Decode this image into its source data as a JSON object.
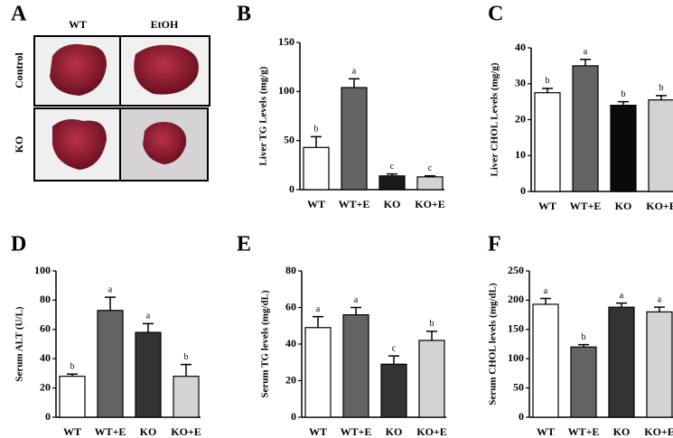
{
  "image_panel": {
    "label": "A",
    "columns": [
      "WT",
      "EtOH"
    ],
    "rows": [
      "Control",
      "KO"
    ]
  },
  "chart_data": [
    {
      "type": "bar",
      "panel": "B",
      "y_label": "Liver TG Levels (mg/g)",
      "categories": [
        "WT",
        "WT+E",
        "KO",
        "KO+E"
      ],
      "values": [
        43,
        104,
        14,
        13
      ],
      "errors": [
        11,
        9,
        2,
        1
      ],
      "significance": [
        "b",
        "a",
        "c",
        "c"
      ],
      "colors": [
        "#ffffff",
        "#646464",
        "#1a1a1a",
        "#d3d3d3"
      ],
      "ylim": [
        0,
        150
      ],
      "yticks": [
        0,
        50,
        100,
        150
      ]
    },
    {
      "type": "bar",
      "panel": "C",
      "y_label": "Liver  CHOL Levels (mg/g)",
      "categories": [
        "WT",
        "WT+E",
        "KO",
        "KO+E"
      ],
      "values": [
        27.5,
        35,
        24,
        25.5
      ],
      "errors": [
        1.2,
        1.8,
        1,
        1.2
      ],
      "significance": [
        "b",
        "a",
        "b",
        "b"
      ],
      "colors": [
        "#ffffff",
        "#646464",
        "#0a0a0a",
        "#d3d3d3"
      ],
      "ylim": [
        0,
        40
      ],
      "yticks": [
        0,
        10,
        20,
        30,
        40
      ]
    },
    {
      "type": "bar",
      "panel": "D",
      "y_label": "Serum ALT (U/L)",
      "categories": [
        "WT",
        "WT+E",
        "KO",
        "KO+E"
      ],
      "values": [
        28,
        73,
        58,
        28
      ],
      "errors": [
        1.5,
        9,
        6,
        8
      ],
      "significance": [
        "b",
        "a",
        "a",
        "b"
      ],
      "colors": [
        "#ffffff",
        "#646464",
        "#333333",
        "#d3d3d3"
      ],
      "ylim": [
        0,
        100
      ],
      "yticks": [
        0,
        20,
        40,
        60,
        80,
        100
      ]
    },
    {
      "type": "bar",
      "panel": "E",
      "y_label": "Serum TG levels (mg/dL)",
      "categories": [
        "WT",
        "WT+E",
        "KO",
        "KO+E"
      ],
      "values": [
        49,
        56,
        29,
        42
      ],
      "errors": [
        6,
        4,
        4.5,
        5
      ],
      "significance": [
        "a",
        "a",
        "c",
        "b"
      ],
      "colors": [
        "#ffffff",
        "#646464",
        "#333333",
        "#d3d3d3"
      ],
      "ylim": [
        0,
        80
      ],
      "yticks": [
        0,
        20,
        40,
        60,
        80
      ]
    },
    {
      "type": "bar",
      "panel": "F",
      "y_label": "Serum CHOL levels (mg/dL)",
      "categories": [
        "WT",
        "WT+E",
        "KO",
        "KO+E"
      ],
      "values": [
        193,
        120,
        188,
        180
      ],
      "errors": [
        10,
        4,
        7,
        8
      ],
      "significance": [
        "a",
        "b",
        "a",
        "a"
      ],
      "colors": [
        "#ffffff",
        "#646464",
        "#333333",
        "#d3d3d3"
      ],
      "ylim": [
        0,
        250
      ],
      "yticks": [
        0,
        50,
        100,
        150,
        200,
        250
      ]
    }
  ]
}
